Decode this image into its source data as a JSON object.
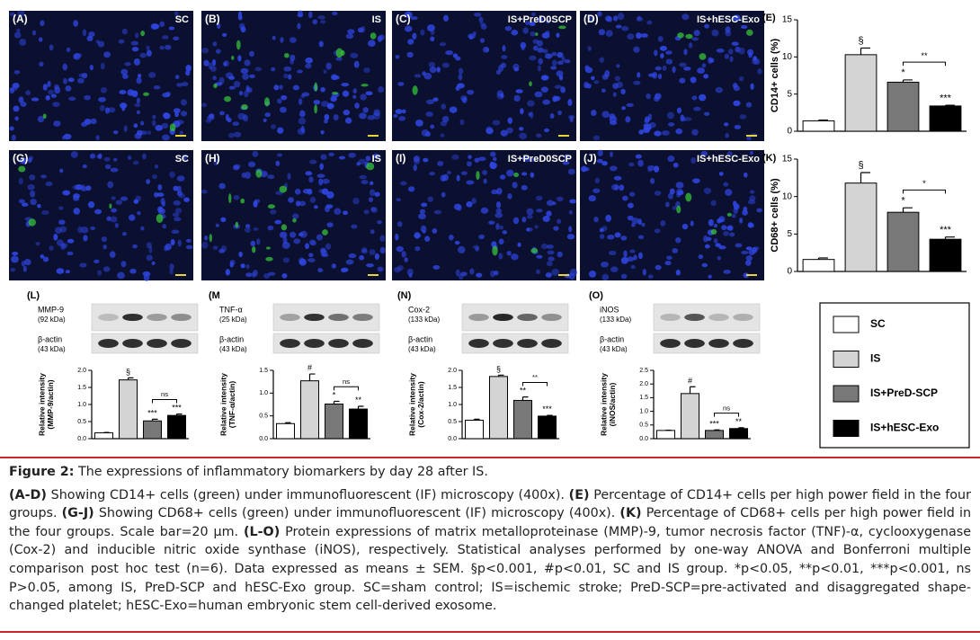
{
  "micrographs": [
    {
      "label": "(A)",
      "group": "SC"
    },
    {
      "label": "(B)",
      "group": "IS"
    },
    {
      "label": "(C)",
      "group": "IS+PreD0SCP"
    },
    {
      "label": "(D)",
      "group": "IS+hESC-Exo"
    },
    {
      "label": "(G)",
      "group": "SC"
    },
    {
      "label": "(H)",
      "group": "IS"
    },
    {
      "label": "(I)",
      "group": "IS+PreD0SCP"
    },
    {
      "label": "(J)",
      "group": "IS+hESC-Exo"
    }
  ],
  "legend": {
    "items": [
      {
        "name": "SC",
        "color": "#ffffff"
      },
      {
        "name": "IS",
        "color": "#d4d4d4"
      },
      {
        "name": "IS+PreD-SCP",
        "color": "#787878"
      },
      {
        "name": "IS+hESC-Exo",
        "color": "#000000"
      }
    ]
  },
  "chart_data": [
    {
      "type": "bar",
      "panel": "(E)",
      "ylabel": [
        "CD14+ cells (%)"
      ],
      "values": [
        1.4,
        10.3,
        6.6,
        3.4
      ],
      "errors": [
        0.1,
        0.9,
        0.3,
        0.1
      ],
      "ylim": [
        0,
        15
      ],
      "yticks": [
        0,
        5,
        10,
        15
      ],
      "annotations": [
        null,
        "§",
        "*",
        "***"
      ],
      "bracket": "**"
    },
    {
      "type": "bar",
      "panel": "(K)",
      "ylabel": [
        "CD68+ cells (%)"
      ],
      "values": [
        1.6,
        11.8,
        7.9,
        4.3
      ],
      "errors": [
        0.2,
        1.4,
        0.6,
        0.3
      ],
      "ylim": [
        0,
        15
      ],
      "yticks": [
        0,
        5,
        10,
        15
      ],
      "annotations": [
        null,
        "§",
        "*",
        "***"
      ],
      "bracket": "*"
    },
    {
      "type": "bar",
      "panel": "(L)",
      "blot": {
        "protein": "MMP-9",
        "protein_kda": "(92 kDa)",
        "control": "β-actin",
        "control_kda": "(43 kDa)"
      },
      "ylabel": [
        "Relative intensity",
        "(MMP-9/actin)"
      ],
      "values": [
        0.17,
        1.72,
        0.52,
        0.68
      ],
      "errors": [
        0.01,
        0.06,
        0.05,
        0.04
      ],
      "ylim": [
        0,
        2
      ],
      "yticks": [
        {
          "value": 0,
          "label": "0.0"
        },
        0.5,
        {
          "value": 1,
          "label": "1.0"
        },
        1.5,
        {
          "value": 2,
          "label": "2.0"
        }
      ],
      "annotations": [
        null,
        "§",
        "***",
        "***"
      ],
      "bracket": "ns"
    },
    {
      "type": "bar",
      "panel": "(M",
      "blot": {
        "protein": "TNF-α",
        "protein_kda": "(25 kDa)",
        "control": "β-actin",
        "control_kda": "(43 kDa)"
      },
      "ylabel": [
        "Relative intensity",
        "(TNF-α/actin)"
      ],
      "values": [
        0.33,
        1.27,
        0.76,
        0.65
      ],
      "errors": [
        0.02,
        0.15,
        0.06,
        0.06
      ],
      "ylim": [
        0,
        1.5
      ],
      "yticks": [
        {
          "value": 0,
          "label": "0.0"
        },
        0.5,
        {
          "value": 1,
          "label": "1.0"
        },
        1.5
      ],
      "annotations": [
        null,
        "#",
        "*",
        "**"
      ],
      "bracket": "ns"
    },
    {
      "type": "bar",
      "panel": "(N)",
      "blot": {
        "protein": "Cox-2",
        "protein_kda": "(133 kDa)",
        "control": "β-actin",
        "control_kda": "(43 kDa)"
      },
      "ylabel": [
        "Relative intensity",
        "(Cox-2/actin)"
      ],
      "values": [
        0.54,
        1.82,
        1.12,
        0.66
      ],
      "errors": [
        0.03,
        0.04,
        0.1,
        0.02
      ],
      "ylim": [
        0,
        2
      ],
      "yticks": [
        {
          "value": 0,
          "label": "0.0"
        },
        0.5,
        {
          "value": 1,
          "label": "1.0"
        },
        1.5,
        {
          "value": 2,
          "label": "2.0"
        }
      ],
      "annotations": [
        null,
        "§",
        "**",
        "***"
      ],
      "bracket": "**"
    },
    {
      "type": "bar",
      "panel": "(O)",
      "blot": {
        "protein": "iNOS",
        "protein_kda": "(133 kDa)",
        "control": "β-actin",
        "control_kda": "(43 kDa)"
      },
      "ylabel": [
        "Relative intensity",
        "(iNOS/actin)"
      ],
      "values": [
        0.3,
        1.65,
        0.3,
        0.37
      ],
      "errors": [
        0.01,
        0.25,
        0.02,
        0.03
      ],
      "ylim": [
        0,
        2.5
      ],
      "yticks": [
        {
          "value": 0,
          "label": "0.0"
        },
        0.5,
        {
          "value": 1,
          "label": "1.0"
        },
        1.5,
        {
          "value": 2,
          "label": "2.0"
        },
        2.5
      ],
      "annotations": [
        null,
        "#",
        "***",
        "**"
      ],
      "bracket": "ns"
    }
  ],
  "caption": {
    "label": "Figure 2:",
    "title": " The expressions of inflammatory biomarkers by day 28 after IS.",
    "body": [
      {
        "ref": "(A-D)",
        "text": " Showing CD14+ cells (green) under immunofluorescent (IF) microscopy (400x). "
      },
      {
        "ref": "(E)",
        "text": " Percentage of CD14+ cells per high power field in the four groups. "
      },
      {
        "ref": "(G-J)",
        "text": " Showing CD68+ cells (green) under immunofluorescent (IF) microscopy (400x). "
      },
      {
        "ref": "(K)",
        "text": " Percentage of CD68+ cells per high power field in the four groups. Scale bar=20 µm. "
      },
      {
        "ref": "(L-O)",
        "text": " Protein expressions of matrix metalloproteinase (MMP)-9, tumor necrosis factor (TNF)-α, cyclooxygenase (Cox-2) and inducible nitric oxide synthase (iNOS), respectively. Statistical analyses performed by one-way ANOVA and Bonferroni multiple comparison post hoc test (n=6). Data expressed as means ± SEM. §p<0.001, #p<0.01, SC and IS group. *p<0.05, **p<0.01, ***p<0.001, ns P>0.05, among IS, PreD-SCP and hESC-Exo group. SC=sham control; IS=ischemic stroke; PreD-SCP=pre-activated and disaggregated shape-changed platelet; hESC-Exo=human embryonic stem cell-derived exosome."
      }
    ]
  }
}
